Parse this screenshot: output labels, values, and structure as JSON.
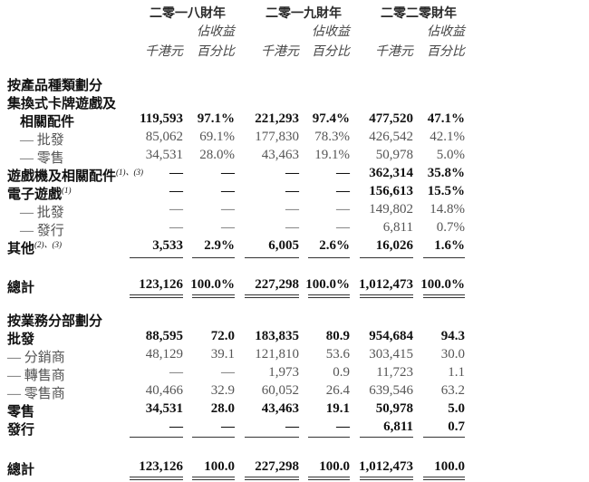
{
  "header": {
    "years": [
      "二零一八財年",
      "二零一九財年",
      "二零二零財年"
    ],
    "col_unit": "千港元",
    "col_pct_line1": "佔收益",
    "col_pct_line2": "百分比"
  },
  "section1": {
    "title": "按產品種類劃分",
    "rows": [
      {
        "label": "集換式卡牌遊戲及",
        "bold": true,
        "indent": false,
        "sup": "",
        "values": [
          "",
          "",
          "",
          "",
          "",
          ""
        ]
      },
      {
        "label": "相關配件",
        "bold": true,
        "indent": true,
        "sup": "",
        "values": [
          "119,593",
          "97.1%",
          "221,293",
          "97.4%",
          "477,520",
          "47.1%"
        ]
      },
      {
        "label": "— 批發",
        "bold": false,
        "indent": true,
        "sup": "",
        "values": [
          "85,062",
          "69.1%",
          "177,830",
          "78.3%",
          "426,542",
          "42.1%"
        ]
      },
      {
        "label": "— 零售",
        "bold": false,
        "indent": true,
        "sup": "",
        "values": [
          "34,531",
          "28.0%",
          "43,463",
          "19.1%",
          "50,978",
          "5.0%"
        ]
      },
      {
        "label": "遊戲機及相關配件",
        "bold": true,
        "indent": false,
        "sup": "(1)、(3)",
        "values": [
          "—",
          "—",
          "—",
          "—",
          "362,314",
          "35.8%"
        ]
      },
      {
        "label": "電子遊戲",
        "bold": true,
        "indent": false,
        "sup": "(1)",
        "values": [
          "—",
          "—",
          "—",
          "—",
          "156,613",
          "15.5%"
        ]
      },
      {
        "label": "— 批發",
        "bold": false,
        "indent": true,
        "sup": "",
        "values": [
          "—",
          "—",
          "—",
          "—",
          "149,802",
          "14.8%"
        ]
      },
      {
        "label": "— 發行",
        "bold": false,
        "indent": true,
        "sup": "",
        "values": [
          "—",
          "—",
          "—",
          "—",
          "6,811",
          "0.7%"
        ]
      },
      {
        "label": "其他",
        "bold": true,
        "indent": false,
        "sup": "(2)、(3)",
        "values": [
          "3,533",
          "2.9%",
          "6,005",
          "2.6%",
          "16,026",
          "1.6%"
        ]
      }
    ],
    "total": {
      "label": "總計",
      "values": [
        "123,126",
        "100.0%",
        "227,298",
        "100.0%",
        "1,012,473",
        "100.0%"
      ]
    }
  },
  "section2": {
    "title": "按業務分部劃分",
    "rows": [
      {
        "label": "批發",
        "bold": true,
        "indent": false,
        "sup": "",
        "values": [
          "88,595",
          "72.0",
          "183,835",
          "80.9",
          "954,684",
          "94.3"
        ]
      },
      {
        "label": "— 分銷商",
        "bold": false,
        "indent": false,
        "sup": "",
        "values": [
          "48,129",
          "39.1",
          "121,810",
          "53.6",
          "303,415",
          "30.0"
        ]
      },
      {
        "label": "— 轉售商",
        "bold": false,
        "indent": false,
        "sup": "",
        "values": [
          "—",
          "—",
          "1,973",
          "0.9",
          "11,723",
          "1.1"
        ]
      },
      {
        "label": "— 零售商",
        "bold": false,
        "indent": false,
        "sup": "",
        "values": [
          "40,466",
          "32.9",
          "60,052",
          "26.4",
          "639,546",
          "63.2"
        ]
      },
      {
        "label": "零售",
        "bold": true,
        "indent": false,
        "sup": "",
        "values": [
          "34,531",
          "28.0",
          "43,463",
          "19.1",
          "50,978",
          "5.0"
        ]
      },
      {
        "label": "發行",
        "bold": true,
        "indent": false,
        "sup": "",
        "values": [
          "—",
          "—",
          "—",
          "—",
          "6,811",
          "0.7"
        ]
      }
    ],
    "total": {
      "label": "總計",
      "values": [
        "123,126",
        "100.0",
        "227,298",
        "100.0",
        "1,012,473",
        "100.0"
      ]
    }
  }
}
